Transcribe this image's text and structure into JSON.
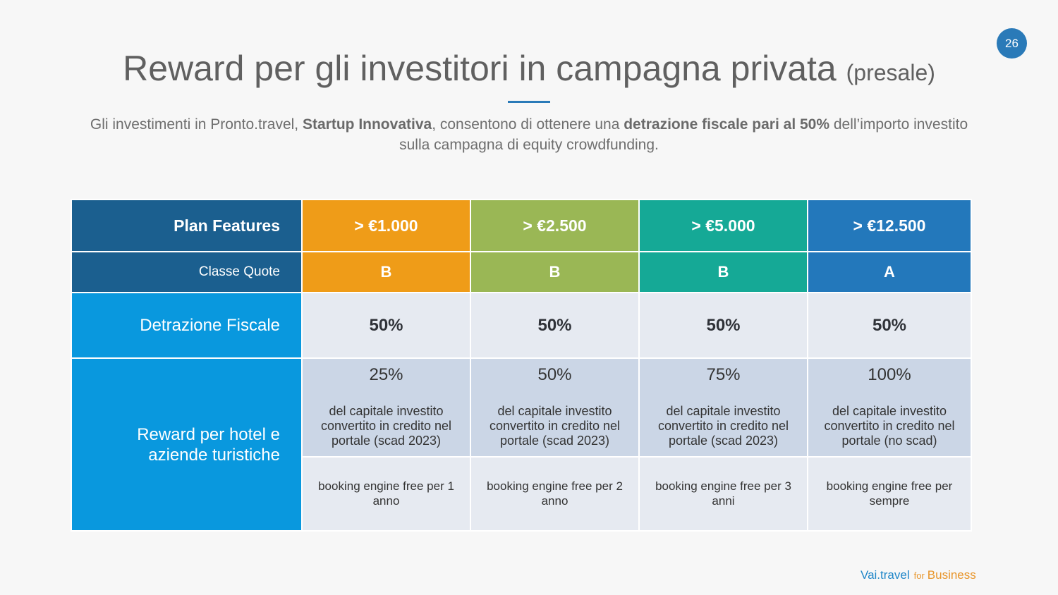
{
  "page_number": "26",
  "title": {
    "main": "Reward per gli investitori in campagna privata",
    "suffix": "(presale)"
  },
  "subtitle": {
    "part1": "Gli investimenti in Pronto.travel, ",
    "bold1": "Startup Innovativa",
    "part2": ", consentono di ottenere una ",
    "bold2": "detrazione fiscale pari al 50%",
    "part3": " dell’importo investito sulla campagna di equity crowdfunding."
  },
  "table": {
    "header_label": "Plan Features",
    "class_label": "Classe Quote",
    "tax_label": "Detrazione Fiscale",
    "reward_label": "Reward per hotel e aziende turistiche",
    "plans": [
      {
        "amount": "> €1.000",
        "class": "B",
        "tax": "50%",
        "reward_pct": "25%",
        "reward_desc": "del capitale investito convertito in credito nel portale (scad 2023)",
        "booking": "booking engine free per 1 anno"
      },
      {
        "amount": "> €2.500",
        "class": "B",
        "tax": "50%",
        "reward_pct": "50%",
        "reward_desc": "del capitale investito convertito in credito nel portale (scad 2023)",
        "booking": "booking engine free per 2 anno"
      },
      {
        "amount": "> €5.000",
        "class": "B",
        "tax": "50%",
        "reward_pct": "75%",
        "reward_desc": "del capitale investito convertito in credito nel portale (scad 2023)",
        "booking": "booking engine free per 3 anni"
      },
      {
        "amount": "> €12.500",
        "class": "A",
        "tax": "50%",
        "reward_pct": "100%",
        "reward_desc": "del capitale investito convertito in credito nel portale (no scad)",
        "booking": "booking engine free per sempre"
      }
    ]
  },
  "brand": {
    "name": "Vai.travel",
    "for": "for",
    "suffix": "Business"
  },
  "colors": {
    "accent": "#2a7ab8",
    "plan_orange": "#ef9c18",
    "plan_green": "#9ab755",
    "plan_teal": "#15a996",
    "plan_blue": "#2378bb"
  }
}
